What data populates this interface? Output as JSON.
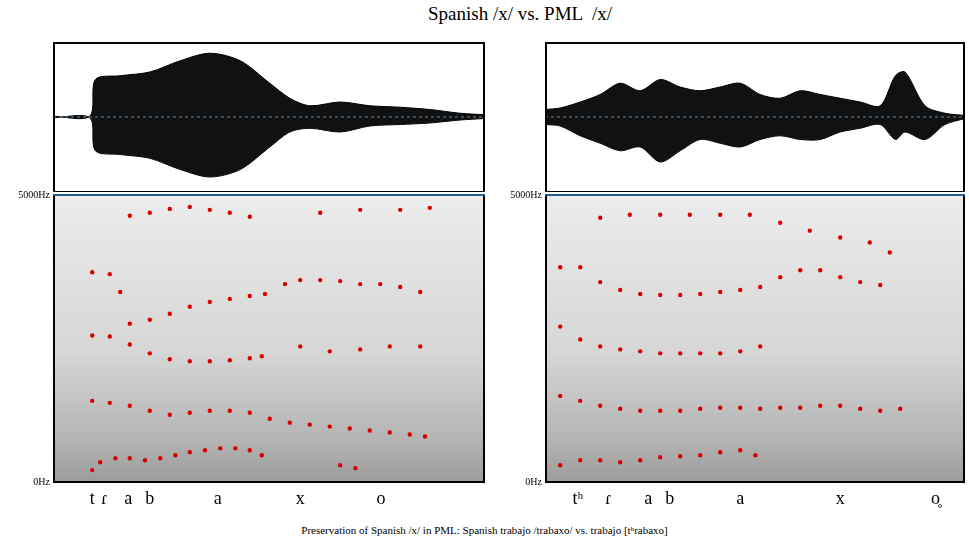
{
  "title": "Spanish /x/ vs. PML  /x/",
  "caption": "Preservation of Spanish /x/ in PML: Spanish trabajo /trabaxo/ vs. trabajo [tʰrabaxo]",
  "chart_data": [
    {
      "type": "scatter",
      "color": "#d40000",
      "grid": false,
      "tick_labels": "y",
      "xlim": [
        0,
        540
      ],
      "ylim": [
        0,
        5000
      ],
      "yticks": [
        {
          "value": 0,
          "label": "0Hz"
        },
        {
          "value": 5000,
          "label": "5000Hz"
        }
      ],
      "series": [
        {
          "x": [
            49,
            59,
            78,
            96,
            115,
            134,
            153,
            171,
            190,
            209,
            228,
            246,
            261,
            359,
            378
          ],
          "values": [
            207,
            345,
            414,
            414,
            379,
            414,
            465,
            517,
            552,
            586,
            586,
            552,
            465,
            293,
            241
          ]
        },
        {
          "x": [
            49,
            71,
            96,
            121,
            146,
            171,
            196,
            221,
            246,
            271,
            296,
            321,
            346,
            371,
            396,
            421,
            446,
            465
          ],
          "values": [
            1414,
            1379,
            1328,
            1241,
            1172,
            1207,
            1241,
            1241,
            1207,
            1103,
            1034,
            1000,
            965,
            931,
            896,
            862,
            828,
            793
          ]
        },
        {
          "x": [
            49,
            71,
            96,
            121,
            146,
            171,
            196,
            221,
            246,
            261,
            309,
            346,
            384,
            421,
            459
          ],
          "values": [
            2552,
            2534,
            2396,
            2241,
            2138,
            2103,
            2103,
            2121,
            2155,
            2190,
            2362,
            2276,
            2310,
            2362,
            2362
          ]
        },
        {
          "x": [
            49,
            71,
            84,
            96,
            121,
            146,
            171,
            196,
            221,
            246,
            265,
            290,
            309,
            334,
            359,
            384,
            409,
            434,
            459
          ],
          "values": [
            3655,
            3621,
            3310,
            2759,
            2827,
            2931,
            3052,
            3138,
            3190,
            3241,
            3276,
            3448,
            3517,
            3517,
            3500,
            3448,
            3448,
            3397,
            3310
          ]
        },
        {
          "x": [
            96,
            121,
            146,
            171,
            196,
            221,
            246,
            334,
            384,
            434,
            471
          ],
          "values": [
            4638,
            4690,
            4758,
            4793,
            4741,
            4690,
            4621,
            4690,
            4741,
            4741,
            4776
          ]
        }
      ],
      "segments": [
        {
          "label": "t",
          "x": 49
        },
        {
          "label": "ɾ",
          "x": 64
        },
        {
          "label": "a",
          "x": 94
        },
        {
          "label": "b",
          "x": 121
        },
        {
          "label": "a",
          "x": 206
        },
        {
          "label": "x",
          "x": 309
        },
        {
          "label": "o",
          "x": 410
        }
      ],
      "waveform": {
        "ylim": [
          -1,
          1
        ],
        "x": [
          0,
          46,
          53,
          84,
          121,
          159,
          196,
          234,
          271,
          296,
          321,
          359,
          396,
          434,
          471,
          509,
          540
        ],
        "upper": [
          0.01,
          0.01,
          0.5,
          0.55,
          0.6,
          0.75,
          0.85,
          0.75,
          0.45,
          0.25,
          0.15,
          0.2,
          0.15,
          0.13,
          0.1,
          0.05,
          0.03
        ],
        "lower": [
          -0.01,
          -0.01,
          -0.45,
          -0.5,
          -0.55,
          -0.7,
          -0.8,
          -0.7,
          -0.4,
          -0.2,
          -0.15,
          -0.2,
          -0.12,
          -0.1,
          -0.08,
          -0.04,
          -0.02
        ]
      }
    },
    {
      "type": "scatter",
      "color": "#d40000",
      "grid": false,
      "tick_labels": "y",
      "xlim": [
        0,
        525
      ],
      "ylim": [
        0,
        5000
      ],
      "yticks": [
        {
          "value": 0,
          "label": "0Hz"
        },
        {
          "value": 5000,
          "label": "5000Hz"
        }
      ],
      "series": [
        {
          "x": [
            19,
            44,
            69,
            94,
            119,
            144,
            169,
            194,
            219,
            244,
            263
          ],
          "values": [
            293,
            379,
            379,
            345,
            379,
            431,
            448,
            465,
            517,
            552,
            465
          ]
        },
        {
          "x": [
            19,
            44,
            69,
            94,
            119,
            144,
            169,
            194,
            219,
            244,
            269,
            294,
            319,
            344,
            369,
            394,
            419,
            444
          ],
          "values": [
            1500,
            1414,
            1328,
            1276,
            1241,
            1241,
            1241,
            1276,
            1293,
            1293,
            1276,
            1293,
            1293,
            1328,
            1328,
            1276,
            1241,
            1276
          ]
        },
        {
          "x": [
            19,
            44,
            69,
            94,
            119,
            144,
            169,
            194,
            219,
            244,
            269
          ],
          "values": [
            2707,
            2483,
            2362,
            2310,
            2276,
            2241,
            2241,
            2241,
            2241,
            2276,
            2362
          ]
        },
        {
          "x": [
            19,
            44,
            69,
            94,
            119,
            144,
            169,
            194,
            219,
            244,
            269,
            294,
            319,
            344,
            369,
            394,
            419
          ],
          "values": [
            3741,
            3741,
            3483,
            3345,
            3276,
            3259,
            3259,
            3276,
            3310,
            3345,
            3397,
            3569,
            3690,
            3690,
            3569,
            3483,
            3431
          ]
        },
        {
          "x": [
            69,
            106,
            144,
            181,
            219,
            256,
            294,
            331,
            369,
            406,
            431
          ],
          "values": [
            4603,
            4655,
            4655,
            4655,
            4655,
            4655,
            4517,
            4379,
            4259,
            4172,
            4000
          ]
        }
      ],
      "segments": [
        {
          "label": "tʰ",
          "x": 41
        },
        {
          "label": "ɾ",
          "x": 79
        },
        {
          "label": "a",
          "x": 129
        },
        {
          "label": "b",
          "x": 156
        },
        {
          "label": "a",
          "x": 244
        },
        {
          "label": "x",
          "x": 369
        },
        {
          "label": "o̥",
          "x": 488
        }
      ],
      "waveform": {
        "ylim": [
          -1,
          1
        ],
        "x": [
          0,
          19,
          44,
          69,
          94,
          119,
          144,
          169,
          194,
          219,
          244,
          269,
          294,
          319,
          344,
          369,
          394,
          419,
          438,
          450,
          475,
          500,
          525
        ],
        "upper": [
          0.1,
          0.12,
          0.2,
          0.3,
          0.45,
          0.35,
          0.5,
          0.4,
          0.35,
          0.4,
          0.45,
          0.3,
          0.25,
          0.35,
          0.3,
          0.25,
          0.2,
          0.15,
          0.55,
          0.6,
          0.15,
          0.05,
          0.02
        ],
        "lower": [
          -0.1,
          -0.12,
          -0.25,
          -0.35,
          -0.45,
          -0.4,
          -0.6,
          -0.45,
          -0.3,
          -0.35,
          -0.4,
          -0.3,
          -0.25,
          -0.3,
          -0.3,
          -0.2,
          -0.15,
          -0.1,
          -0.3,
          -0.2,
          -0.3,
          -0.1,
          -0.02
        ]
      }
    }
  ]
}
